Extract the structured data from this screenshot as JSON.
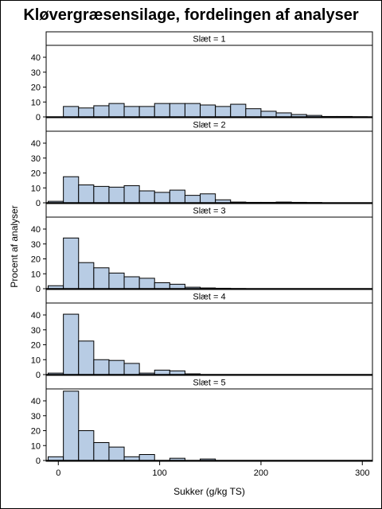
{
  "chart_data": {
    "type": "bar",
    "title": "Kløvergræsensilage, fordelingen af analyser",
    "xlabel": "Sukker (g/kg TS)",
    "ylabel": "Procent af analyser",
    "xlim": [
      -12,
      310
    ],
    "ylim": [
      0,
      48
    ],
    "x_ticks": [
      0,
      100,
      200,
      300
    ],
    "y_ticks": [
      0,
      10,
      20,
      30,
      40
    ],
    "bin_starts": [
      -10,
      5,
      20,
      35,
      50,
      65,
      80,
      95,
      110,
      125,
      140,
      155,
      170,
      185,
      200,
      215,
      230,
      245,
      260,
      275,
      290
    ],
    "bin_width": 15,
    "bar_color": "#b8cce4",
    "panels": [
      {
        "label": "Slæt = 1",
        "values": [
          0,
          7,
          6,
          7.5,
          9,
          7,
          7,
          9,
          9,
          9,
          8,
          7,
          8.5,
          5.5,
          3.8,
          2.7,
          1.6,
          1,
          0.3,
          0.3,
          0.1
        ]
      },
      {
        "label": "Slæt = 2",
        "values": [
          1,
          17.5,
          12,
          11,
          10.5,
          11.5,
          8,
          7,
          8.5,
          5,
          6,
          2,
          0.5,
          0.3,
          0.3,
          0.5,
          0.3,
          0.2,
          0,
          0,
          0
        ]
      },
      {
        "label": "Slæt = 3",
        "values": [
          2,
          34,
          17.5,
          14,
          10.5,
          8,
          7,
          4,
          3,
          1,
          0.5,
          0.3,
          0.1,
          0,
          0,
          0,
          0,
          0,
          0,
          0,
          0
        ]
      },
      {
        "label": "Slæt = 4",
        "values": [
          1,
          40.5,
          22.5,
          10,
          9.5,
          7.5,
          1,
          3,
          2.5,
          0.5,
          0,
          0,
          0,
          0,
          0,
          0,
          0,
          0,
          0,
          0,
          0
        ]
      },
      {
        "label": "Slæt = 5",
        "values": [
          2.5,
          46.5,
          20,
          12,
          9,
          2.5,
          4,
          0,
          1.5,
          0,
          1,
          0,
          0,
          0,
          0,
          0,
          0,
          0,
          0,
          0,
          0
        ]
      }
    ]
  }
}
